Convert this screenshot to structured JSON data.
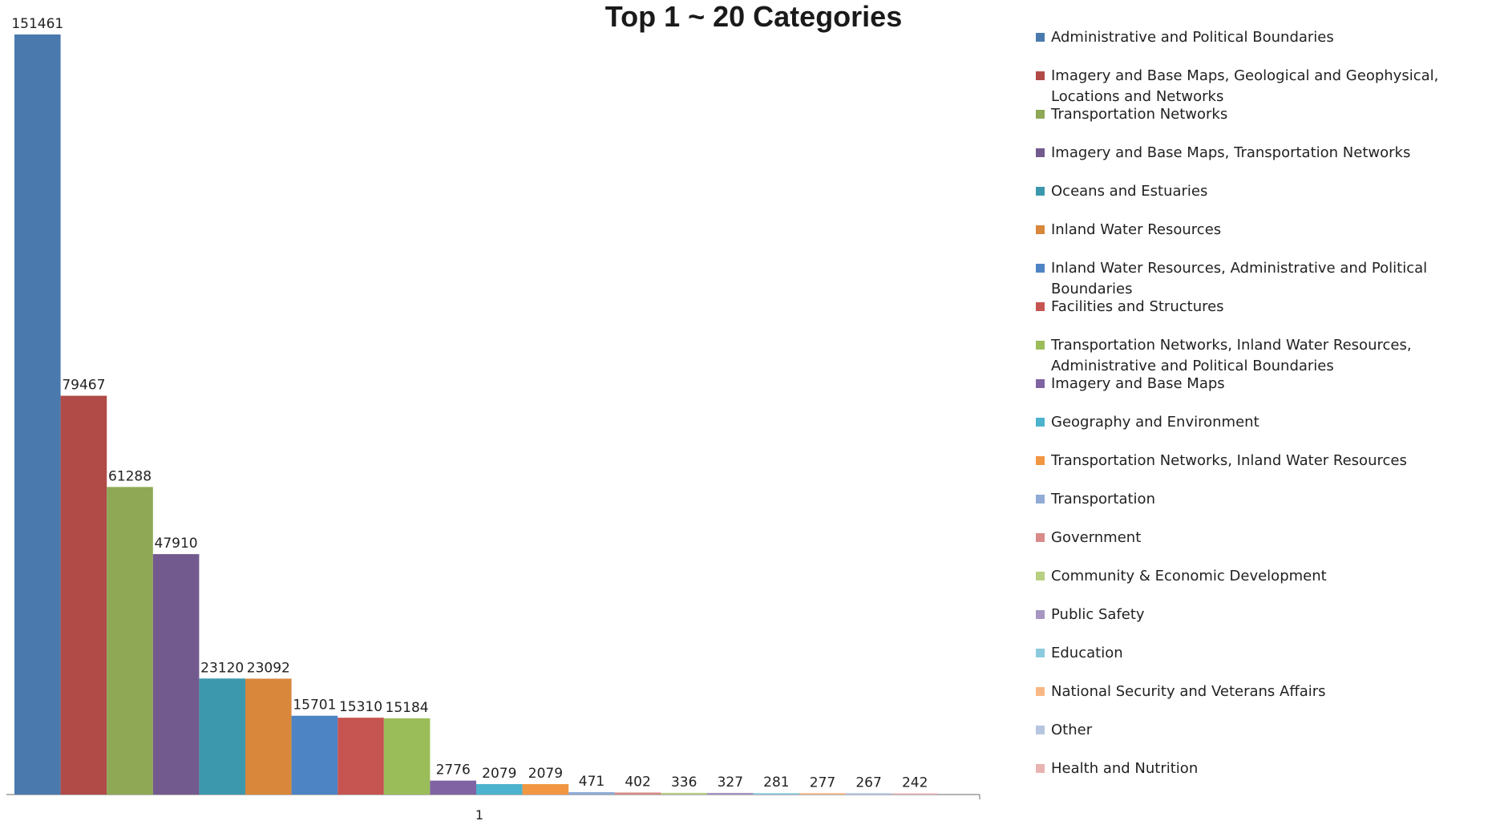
{
  "chart_data": {
    "type": "bar",
    "title": "Top 1 ~ 20 Categories",
    "categories": [
      "1"
    ],
    "ylim": [
      0,
      151461
    ],
    "grid": false,
    "legend_position": "right",
    "series": [
      {
        "name": "Administrative and Political Boundaries",
        "value": 151461,
        "color": "#4a7aad"
      },
      {
        "name": "Imagery and Base Maps, Geological and Geophysical, Locations and Networks",
        "value": 79467,
        "color": "#b04b48"
      },
      {
        "name": "Transportation Networks",
        "value": 61288,
        "color": "#8fa855"
      },
      {
        "name": "Imagery and Base Maps, Transportation Networks",
        "value": 47910,
        "color": "#735a8e"
      },
      {
        "name": "Oceans and Estuaries",
        "value": 23120,
        "color": "#3c98ad"
      },
      {
        "name": "Inland Water Resources",
        "value": 23092,
        "color": "#d8873b"
      },
      {
        "name": "Inland Water Resources, Administrative and Political Boundaries",
        "value": 15701,
        "color": "#4d84c4"
      },
      {
        "name": "Facilities and Structures",
        "value": 15310,
        "color": "#c65451"
      },
      {
        "name": "Transportation Networks, Inland Water Resources, Administrative and Political Boundaries",
        "value": 15184,
        "color": "#9bbd59"
      },
      {
        "name": "Imagery and Base Maps",
        "value": 2776,
        "color": "#8063a3"
      },
      {
        "name": "Geography and Environment",
        "value": 2079,
        "color": "#4bb3cd"
      },
      {
        "name": "Transportation Networks, Inland Water Resources",
        "value": 2079,
        "color": "#f19642"
      },
      {
        "name": "Transportation",
        "value": 471,
        "color": "#8fabd6"
      },
      {
        "name": "Government",
        "value": 402,
        "color": "#d98b8a"
      },
      {
        "name": "Community & Economic Development",
        "value": 336,
        "color": "#b7d082"
      },
      {
        "name": "Public Safety",
        "value": 327,
        "color": "#a796c1"
      },
      {
        "name": "Education",
        "value": 281,
        "color": "#8ccbdd"
      },
      {
        "name": "National Security and Veterans Affairs",
        "value": 277,
        "color": "#f8b886"
      },
      {
        "name": "Other",
        "value": 267,
        "color": "#b6c6e0"
      },
      {
        "name": "Health and Nutrition",
        "value": 242,
        "color": "#e9b3b2"
      }
    ]
  }
}
